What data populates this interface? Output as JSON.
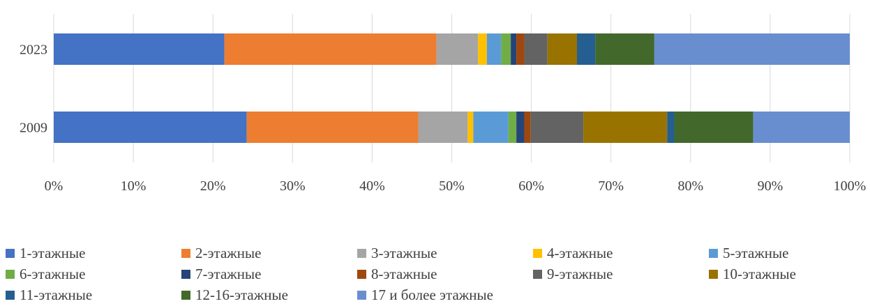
{
  "chart_data": {
    "type": "bar",
    "orientation": "horizontal",
    "stacked": "percent",
    "categories": [
      "2023",
      "2009"
    ],
    "xlim": [
      0,
      100
    ],
    "x_ticks": [
      "0%",
      "10%",
      "20%",
      "30%",
      "40%",
      "50%",
      "60%",
      "70%",
      "80%",
      "90%",
      "100%"
    ],
    "grid": "vertical",
    "legend_position": "bottom",
    "series": [
      {
        "name": "1-этажные",
        "color": "#4472C4",
        "values": [
          21.4,
          24.2
        ]
      },
      {
        "name": "2-этажные",
        "color": "#ED7D31",
        "values": [
          26.6,
          21.5
        ]
      },
      {
        "name": "3-этажные",
        "color": "#A5A5A5",
        "values": [
          5.2,
          6.2
        ]
      },
      {
        "name": "4-этажные",
        "color": "#FFC000",
        "values": [
          1.1,
          0.7
        ]
      },
      {
        "name": "5-этажные",
        "color": "#5B9BD5",
        "values": [
          1.8,
          4.4
        ]
      },
      {
        "name": "6-этажные",
        "color": "#70AD47",
        "values": [
          1.2,
          1.0
        ]
      },
      {
        "name": "7-этажные",
        "color": "#264478",
        "values": [
          0.7,
          1.0
        ]
      },
      {
        "name": "8-этажные",
        "color": "#9E480E",
        "values": [
          1.0,
          0.8
        ]
      },
      {
        "name": "9-этажные",
        "color": "#636363",
        "values": [
          2.9,
          6.6
        ]
      },
      {
        "name": "10-этажные",
        "color": "#997300",
        "values": [
          3.7,
          10.5
        ]
      },
      {
        "name": "11-этажные",
        "color": "#255E91",
        "values": [
          2.3,
          0.9
        ]
      },
      {
        "name": "12-16-этажные",
        "color": "#43682B",
        "values": [
          7.4,
          9.9
        ]
      },
      {
        "name": "17 и более этажные",
        "color": "#698ED0",
        "values": [
          24.5,
          12.1
        ]
      }
    ]
  }
}
